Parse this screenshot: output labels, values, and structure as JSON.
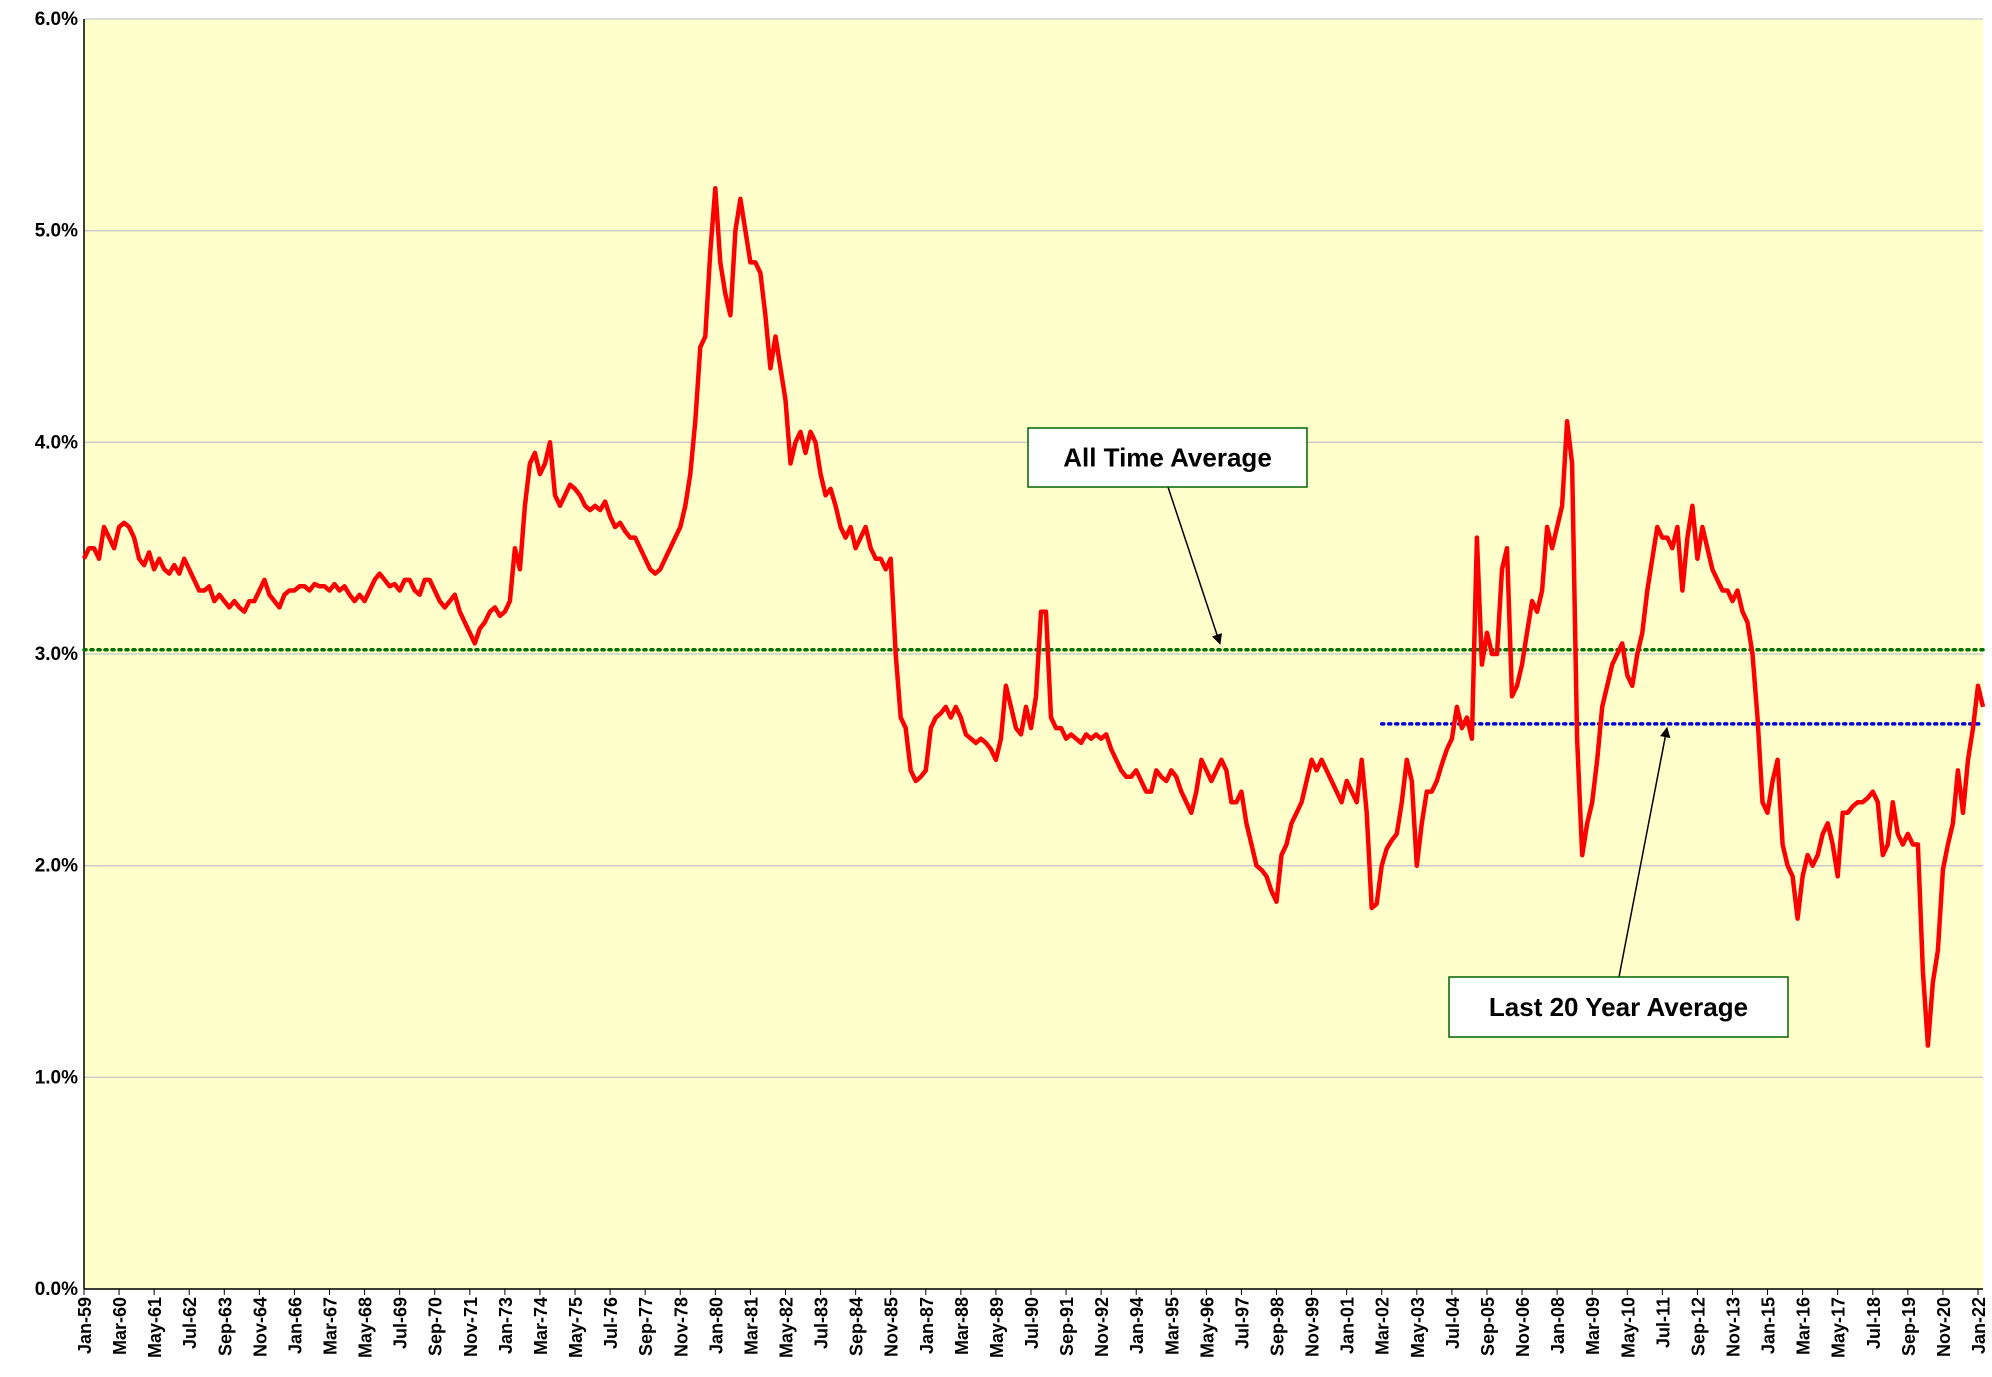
{
  "chart_data": {
    "type": "line",
    "plot_background": "#ffffcc",
    "grid": true,
    "ylim": [
      0,
      6
    ],
    "yticks": [
      {
        "value": 0,
        "label": "0.0%"
      },
      {
        "value": 1,
        "label": "1.0%"
      },
      {
        "value": 2,
        "label": "2.0%"
      },
      {
        "value": 3,
        "label": "3.0%"
      },
      {
        "value": 4,
        "label": "4.0%"
      },
      {
        "value": 5,
        "label": "5.0%"
      },
      {
        "value": 6,
        "label": "6.0%"
      }
    ],
    "categories": [
      "Jan-59",
      null,
      null,
      null,
      null,
      null,
      null,
      "Mar-60",
      null,
      null,
      null,
      null,
      null,
      null,
      "May-61",
      null,
      null,
      null,
      null,
      null,
      null,
      "Jul-62",
      null,
      null,
      null,
      null,
      null,
      null,
      "Sep-63",
      null,
      null,
      null,
      null,
      null,
      null,
      "Nov-64",
      null,
      null,
      null,
      null,
      null,
      null,
      "Jan-66",
      null,
      null,
      null,
      null,
      null,
      null,
      "Mar-67",
      null,
      null,
      null,
      null,
      null,
      null,
      "May-68",
      null,
      null,
      null,
      null,
      null,
      null,
      "Jul-69",
      null,
      null,
      null,
      null,
      null,
      null,
      "Sep-70",
      null,
      null,
      null,
      null,
      null,
      null,
      "Nov-71",
      null,
      null,
      null,
      null,
      null,
      null,
      "Jan-73",
      null,
      null,
      null,
      null,
      null,
      null,
      "Mar-74",
      null,
      null,
      null,
      null,
      null,
      null,
      "May-75",
      null,
      null,
      null,
      null,
      null,
      null,
      "Jul-76",
      null,
      null,
      null,
      null,
      null,
      null,
      "Sep-77",
      null,
      null,
      null,
      null,
      null,
      null,
      "Nov-78",
      null,
      null,
      null,
      null,
      null,
      null,
      "Jan-80",
      null,
      null,
      null,
      null,
      null,
      null,
      "Mar-81",
      null,
      null,
      null,
      null,
      null,
      null,
      "May-82",
      null,
      null,
      null,
      null,
      null,
      null,
      "Jul-83",
      null,
      null,
      null,
      null,
      null,
      null,
      "Sep-84",
      null,
      null,
      null,
      null,
      null,
      null,
      "Nov-85",
      null,
      null,
      null,
      null,
      null,
      null,
      "Jan-87",
      null,
      null,
      null,
      null,
      null,
      null,
      "Mar-88",
      null,
      null,
      null,
      null,
      null,
      null,
      "May-89",
      null,
      null,
      null,
      null,
      null,
      null,
      "Jul-90",
      null,
      null,
      null,
      null,
      null,
      null,
      "Sep-91",
      null,
      null,
      null,
      null,
      null,
      null,
      "Nov-92",
      null,
      null,
      null,
      null,
      null,
      null,
      "Jan-94",
      null,
      null,
      null,
      null,
      null,
      null,
      "Mar-95",
      null,
      null,
      null,
      null,
      null,
      null,
      "May-96",
      null,
      null,
      null,
      null,
      null,
      null,
      "Jul-97",
      null,
      null,
      null,
      null,
      null,
      null,
      "Sep-98",
      null,
      null,
      null,
      null,
      null,
      null,
      "Nov-99",
      null,
      null,
      null,
      null,
      null,
      null,
      "Jan-01",
      null,
      null,
      null,
      null,
      null,
      null,
      "Mar-02",
      null,
      null,
      null,
      null,
      null,
      null,
      "May-03",
      null,
      null,
      null,
      null,
      null,
      null,
      "Jul-04",
      null,
      null,
      null,
      null,
      null,
      null,
      "Sep-05",
      null,
      null,
      null,
      null,
      null,
      null,
      "Nov-06",
      null,
      null,
      null,
      null,
      null,
      null,
      "Jan-08",
      null,
      null,
      null,
      null,
      null,
      null,
      "Mar-09",
      null,
      null,
      null,
      null,
      null,
      null,
      "May-10",
      null,
      null,
      null,
      null,
      null,
      null,
      "Jul-11",
      null,
      null,
      null,
      null,
      null,
      null,
      "Sep-12",
      null,
      null,
      null,
      null,
      null,
      null,
      "Nov-13",
      null,
      null,
      null,
      null,
      null,
      null,
      "Jan-15",
      null,
      null,
      null,
      null,
      null,
      null,
      "Mar-16",
      null,
      null,
      null,
      null,
      null,
      null,
      "May-17",
      null,
      null,
      null,
      null,
      null,
      null,
      "Jul-18",
      null,
      null,
      null,
      null,
      null,
      null,
      "Sep-19",
      null,
      null,
      null,
      null,
      null,
      null,
      "Nov-20",
      null,
      null,
      null,
      null,
      null,
      null,
      "Jan-22",
      null
    ],
    "series": [
      {
        "color": "#ff0000",
        "values": [
          3.45,
          3.5,
          3.5,
          3.45,
          3.6,
          3.55,
          3.5,
          3.6,
          3.62,
          3.6,
          3.55,
          3.45,
          3.42,
          3.48,
          3.4,
          3.45,
          3.4,
          3.38,
          3.42,
          3.38,
          3.45,
          3.4,
          3.35,
          3.3,
          3.3,
          3.32,
          3.25,
          3.28,
          3.25,
          3.22,
          3.25,
          3.22,
          3.2,
          3.25,
          3.25,
          3.3,
          3.35,
          3.28,
          3.25,
          3.22,
          3.28,
          3.3,
          3.3,
          3.32,
          3.32,
          3.3,
          3.33,
          3.32,
          3.32,
          3.3,
          3.33,
          3.3,
          3.32,
          3.28,
          3.25,
          3.28,
          3.25,
          3.3,
          3.35,
          3.38,
          3.35,
          3.32,
          3.33,
          3.3,
          3.35,
          3.35,
          3.3,
          3.28,
          3.35,
          3.35,
          3.3,
          3.25,
          3.22,
          3.25,
          3.28,
          3.2,
          3.15,
          3.1,
          3.05,
          3.12,
          3.15,
          3.2,
          3.22,
          3.18,
          3.2,
          3.25,
          3.5,
          3.4,
          3.7,
          3.9,
          3.95,
          3.85,
          3.9,
          4.0,
          3.75,
          3.7,
          3.75,
          3.8,
          3.78,
          3.75,
          3.7,
          3.68,
          3.7,
          3.68,
          3.72,
          3.65,
          3.6,
          3.62,
          3.58,
          3.55,
          3.55,
          3.5,
          3.45,
          3.4,
          3.38,
          3.4,
          3.45,
          3.5,
          3.55,
          3.6,
          3.7,
          3.85,
          4.1,
          4.45,
          4.5,
          4.9,
          5.2,
          4.85,
          4.7,
          4.6,
          5.0,
          5.15,
          5.0,
          4.85,
          4.85,
          4.8,
          4.6,
          4.35,
          4.5,
          4.35,
          4.2,
          3.9,
          4.0,
          4.05,
          3.95,
          4.05,
          4.0,
          3.85,
          3.75,
          3.78,
          3.7,
          3.6,
          3.55,
          3.6,
          3.5,
          3.55,
          3.6,
          3.5,
          3.45,
          3.45,
          3.4,
          3.45,
          3.0,
          2.7,
          2.65,
          2.45,
          2.4,
          2.42,
          2.45,
          2.65,
          2.7,
          2.72,
          2.75,
          2.7,
          2.75,
          2.7,
          2.62,
          2.6,
          2.58,
          2.6,
          2.58,
          2.55,
          2.5,
          2.6,
          2.85,
          2.75,
          2.65,
          2.62,
          2.75,
          2.65,
          2.8,
          3.2,
          3.2,
          2.7,
          2.65,
          2.65,
          2.6,
          2.62,
          2.6,
          2.58,
          2.62,
          2.6,
          2.62,
          2.6,
          2.62,
          2.55,
          2.5,
          2.45,
          2.42,
          2.42,
          2.45,
          2.4,
          2.35,
          2.35,
          2.45,
          2.42,
          2.4,
          2.45,
          2.42,
          2.35,
          2.3,
          2.25,
          2.35,
          2.5,
          2.45,
          2.4,
          2.45,
          2.5,
          2.45,
          2.3,
          2.3,
          2.35,
          2.2,
          2.1,
          2.0,
          1.98,
          1.95,
          1.88,
          1.83,
          2.05,
          2.1,
          2.2,
          2.25,
          2.3,
          2.4,
          2.5,
          2.45,
          2.5,
          2.45,
          2.4,
          2.35,
          2.3,
          2.4,
          2.35,
          2.3,
          2.5,
          2.25,
          1.8,
          1.82,
          2.0,
          2.08,
          2.12,
          2.15,
          2.3,
          2.5,
          2.4,
          2.0,
          2.2,
          2.35,
          2.35,
          2.4,
          2.48,
          2.55,
          2.6,
          2.75,
          2.65,
          2.7,
          2.6,
          3.55,
          2.95,
          3.1,
          3.0,
          3.0,
          3.4,
          3.5,
          2.8,
          2.85,
          2.95,
          3.1,
          3.25,
          3.2,
          3.3,
          3.6,
          3.5,
          3.6,
          3.7,
          4.1,
          3.9,
          2.6,
          2.05,
          2.2,
          2.3,
          2.5,
          2.75,
          2.85,
          2.95,
          3.0,
          3.05,
          2.9,
          2.85,
          3.0,
          3.1,
          3.3,
          3.45,
          3.6,
          3.55,
          3.55,
          3.5,
          3.6,
          3.3,
          3.55,
          3.7,
          3.45,
          3.6,
          3.5,
          3.4,
          3.35,
          3.3,
          3.3,
          3.25,
          3.3,
          3.2,
          3.15,
          3.0,
          2.7,
          2.3,
          2.25,
          2.4,
          2.5,
          2.1,
          2.0,
          1.95,
          1.75,
          1.95,
          2.05,
          2.0,
          2.05,
          2.15,
          2.2,
          2.1,
          1.95,
          2.25,
          2.25,
          2.28,
          2.3,
          2.3,
          2.32,
          2.35,
          2.3,
          2.05,
          2.1,
          2.3,
          2.15,
          2.1,
          2.15,
          2.1,
          2.1,
          1.5,
          1.15,
          1.45,
          1.6,
          1.98,
          2.1,
          2.2,
          2.45,
          2.25,
          2.5,
          2.65,
          2.85,
          2.75
        ]
      }
    ],
    "reference_lines": [
      {
        "value": 3.02,
        "color": "#007000",
        "x_start": "Jan-59"
      },
      {
        "value": 2.67,
        "color": "#0000dd",
        "x_start": "Mar-02"
      }
    ],
    "annotations": [
      {
        "text": "All Time Average",
        "line": 0
      },
      {
        "text": "Last 20 Year Average",
        "line": 1
      }
    ]
  }
}
